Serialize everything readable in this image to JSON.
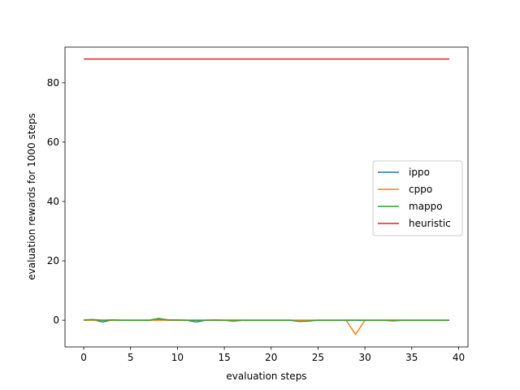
{
  "chart_data": {
    "type": "line",
    "title": "",
    "xlabel": "evaluation steps",
    "ylabel": "evaluation rewards for 1000 steps",
    "xlim": [
      -2,
      41
    ],
    "ylim": [
      -9,
      92
    ],
    "xticks": [
      0,
      5,
      10,
      15,
      20,
      25,
      30,
      35,
      40
    ],
    "yticks": [
      0,
      20,
      40,
      60,
      80
    ],
    "grid": false,
    "legend_position": "center-right",
    "x": [
      0,
      1,
      2,
      3,
      4,
      5,
      6,
      7,
      8,
      9,
      10,
      11,
      12,
      13,
      14,
      15,
      16,
      17,
      18,
      19,
      20,
      21,
      22,
      23,
      24,
      25,
      26,
      27,
      28,
      29,
      30,
      31,
      32,
      33,
      34,
      35,
      36,
      37,
      38,
      39
    ],
    "series": [
      {
        "name": "ippo",
        "color": "#1f77b4",
        "values": [
          0,
          0.2,
          -0.6,
          0.1,
          0,
          0,
          0,
          0,
          0.3,
          0,
          0,
          0,
          -0.6,
          0,
          0,
          0,
          0,
          0,
          0,
          0,
          0,
          0,
          0,
          0,
          0,
          0,
          0,
          0,
          0,
          0,
          0,
          0,
          0,
          0,
          0,
          0,
          0,
          0,
          0,
          0
        ]
      },
      {
        "name": "cppo",
        "color": "#ff7f0e",
        "values": [
          0,
          0,
          0,
          0,
          0,
          0,
          0,
          0,
          0,
          0,
          0,
          0,
          0,
          0,
          0,
          0,
          -0.4,
          0,
          0,
          0,
          0,
          0,
          0,
          0,
          0,
          0,
          0,
          0,
          0,
          -4.8,
          0,
          0,
          0,
          -0.3,
          0,
          0,
          0,
          0,
          0,
          0
        ]
      },
      {
        "name": "mappo",
        "color": "#2ca02c",
        "values": [
          0.1,
          0.2,
          0,
          0.1,
          0,
          0,
          0,
          0,
          0.6,
          0.1,
          0.1,
          0,
          0,
          0,
          0.1,
          0,
          0,
          0,
          0,
          0,
          0,
          0,
          0,
          -0.4,
          -0.3,
          0,
          0,
          0,
          0,
          0,
          0,
          0,
          0,
          0,
          0,
          0,
          0,
          0,
          0,
          0
        ]
      },
      {
        "name": "heuristic",
        "color": "#d62728",
        "values": [
          88,
          88,
          88,
          88,
          88,
          88,
          88,
          88,
          88,
          88,
          88,
          88,
          88,
          88,
          88,
          88,
          88,
          88,
          88,
          88,
          88,
          88,
          88,
          88,
          88,
          88,
          88,
          88,
          88,
          88,
          88,
          88,
          88,
          88,
          88,
          88,
          88,
          88,
          88,
          88
        ]
      }
    ]
  }
}
